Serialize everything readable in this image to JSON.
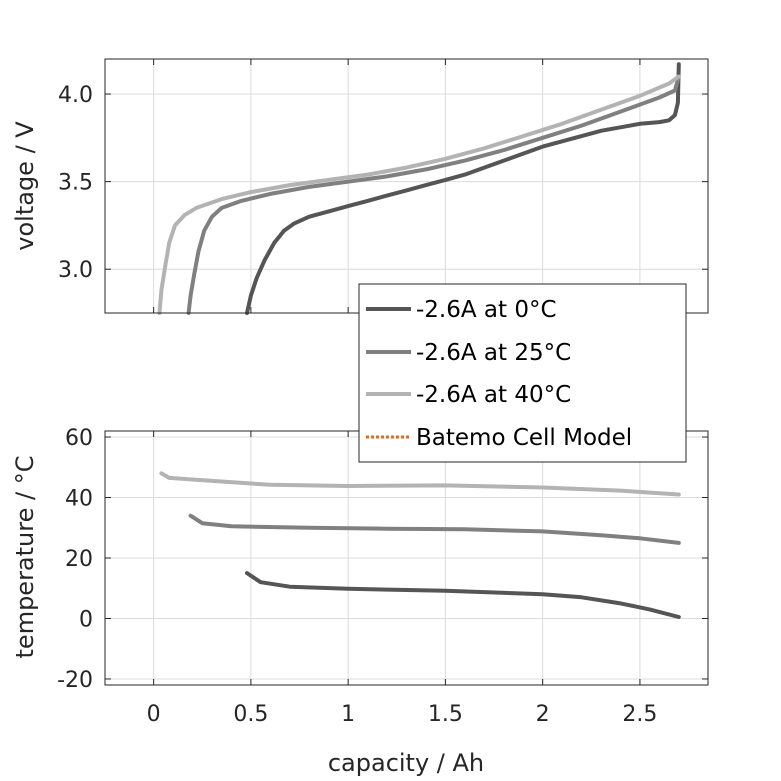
{
  "chart_data": [
    {
      "type": "line",
      "ylabel": "voltage / V",
      "xlabel": "",
      "xlim": [
        -0.25,
        2.85
      ],
      "ylim": [
        2.75,
        4.2
      ],
      "xticks": [
        0,
        0.5,
        1,
        1.5,
        2,
        2.5
      ],
      "yticks": [
        3.0,
        3.5,
        4.0
      ],
      "ytick_labels": [
        "3.0",
        "3.5",
        "4.0"
      ],
      "grid": true,
      "series": [
        {
          "name": "-2.6A at 0°C",
          "color": "#555555",
          "points": [
            [
              0.48,
              2.75
            ],
            [
              0.5,
              2.85
            ],
            [
              0.53,
              2.95
            ],
            [
              0.57,
              3.05
            ],
            [
              0.62,
              3.15
            ],
            [
              0.67,
              3.22
            ],
            [
              0.72,
              3.26
            ],
            [
              0.8,
              3.3
            ],
            [
              0.9,
              3.33
            ],
            [
              1.0,
              3.36
            ],
            [
              1.1,
              3.39
            ],
            [
              1.2,
              3.42
            ],
            [
              1.3,
              3.45
            ],
            [
              1.4,
              3.48
            ],
            [
              1.5,
              3.51
            ],
            [
              1.6,
              3.54
            ],
            [
              1.7,
              3.58
            ],
            [
              1.8,
              3.62
            ],
            [
              1.9,
              3.66
            ],
            [
              2.0,
              3.7
            ],
            [
              2.1,
              3.73
            ],
            [
              2.2,
              3.76
            ],
            [
              2.3,
              3.79
            ],
            [
              2.4,
              3.81
            ],
            [
              2.5,
              3.83
            ],
            [
              2.6,
              3.84
            ],
            [
              2.65,
              3.85
            ],
            [
              2.68,
              3.88
            ],
            [
              2.695,
              3.95
            ],
            [
              2.7,
              4.17
            ]
          ]
        },
        {
          "name": "-2.6A at 25°C",
          "color": "#808080",
          "points": [
            [
              0.18,
              2.75
            ],
            [
              0.19,
              2.85
            ],
            [
              0.21,
              2.98
            ],
            [
              0.23,
              3.1
            ],
            [
              0.26,
              3.22
            ],
            [
              0.3,
              3.3
            ],
            [
              0.35,
              3.35
            ],
            [
              0.45,
              3.39
            ],
            [
              0.6,
              3.43
            ],
            [
              0.8,
              3.47
            ],
            [
              1.0,
              3.5
            ],
            [
              1.2,
              3.53
            ],
            [
              1.4,
              3.57
            ],
            [
              1.6,
              3.62
            ],
            [
              1.8,
              3.68
            ],
            [
              2.0,
              3.75
            ],
            [
              2.2,
              3.82
            ],
            [
              2.4,
              3.9
            ],
            [
              2.6,
              3.98
            ],
            [
              2.68,
              4.02
            ],
            [
              2.7,
              4.1
            ]
          ]
        },
        {
          "name": "-2.6A at 40°C",
          "color": "#b3b3b3",
          "points": [
            [
              0.03,
              2.75
            ],
            [
              0.04,
              2.88
            ],
            [
              0.06,
              3.02
            ],
            [
              0.08,
              3.15
            ],
            [
              0.11,
              3.25
            ],
            [
              0.16,
              3.31
            ],
            [
              0.22,
              3.35
            ],
            [
              0.35,
              3.4
            ],
            [
              0.5,
              3.44
            ],
            [
              0.7,
              3.48
            ],
            [
              0.9,
              3.51
            ],
            [
              1.1,
              3.54
            ],
            [
              1.3,
              3.58
            ],
            [
              1.5,
              3.63
            ],
            [
              1.7,
              3.69
            ],
            [
              1.9,
              3.76
            ],
            [
              2.1,
              3.83
            ],
            [
              2.3,
              3.91
            ],
            [
              2.5,
              3.99
            ],
            [
              2.65,
              4.06
            ],
            [
              2.7,
              4.1
            ]
          ]
        }
      ]
    },
    {
      "type": "line",
      "ylabel": "temperature / °C",
      "xlabel": "capacity / Ah",
      "xlim": [
        -0.25,
        2.85
      ],
      "ylim": [
        -22,
        62
      ],
      "xticks": [
        0,
        0.5,
        1,
        1.5,
        2,
        2.5
      ],
      "xtick_labels": [
        "0",
        "0.5",
        "1",
        "1.5",
        "2",
        "2.5"
      ],
      "yticks": [
        -20,
        0,
        20,
        40,
        60
      ],
      "ytick_labels": [
        "-20",
        "0",
        "20",
        "40",
        "60"
      ],
      "grid": true,
      "series": [
        {
          "name": "-2.6A at 0°C",
          "color": "#555555",
          "points": [
            [
              0.48,
              15
            ],
            [
              0.55,
              12
            ],
            [
              0.7,
              10.5
            ],
            [
              1.0,
              9.8
            ],
            [
              1.5,
              9.2
            ],
            [
              2.0,
              8
            ],
            [
              2.2,
              7
            ],
            [
              2.4,
              5
            ],
            [
              2.55,
              3
            ],
            [
              2.7,
              0.5
            ]
          ]
        },
        {
          "name": "-2.6A at 25°C",
          "color": "#808080",
          "points": [
            [
              0.19,
              34
            ],
            [
              0.25,
              31.5
            ],
            [
              0.4,
              30.5
            ],
            [
              0.8,
              30
            ],
            [
              1.2,
              29.7
            ],
            [
              1.6,
              29.5
            ],
            [
              2.0,
              28.8
            ],
            [
              2.3,
              27.5
            ],
            [
              2.5,
              26.5
            ],
            [
              2.7,
              25
            ]
          ]
        },
        {
          "name": "-2.6A at 40°C",
          "color": "#b3b3b3",
          "points": [
            [
              0.04,
              48
            ],
            [
              0.08,
              46.5
            ],
            [
              0.3,
              45.5
            ],
            [
              0.6,
              44.2
            ],
            [
              1.0,
              43.8
            ],
            [
              1.5,
              44
            ],
            [
              2.0,
              43.3
            ],
            [
              2.4,
              42.3
            ],
            [
              2.7,
              41
            ]
          ]
        }
      ]
    }
  ],
  "legend": {
    "placement": "bottom-right of top axes",
    "entries": [
      {
        "label": "-2.6A at 0°C",
        "color": "#555555",
        "style": "solid"
      },
      {
        "label": "-2.6A at 25°C",
        "color": "#808080",
        "style": "solid"
      },
      {
        "label": "-2.6A at 40°C",
        "color": "#b3b3b3",
        "style": "solid"
      },
      {
        "label": "Batemo Cell Model",
        "color": "#e8671e",
        "style": "dotted"
      }
    ]
  }
}
